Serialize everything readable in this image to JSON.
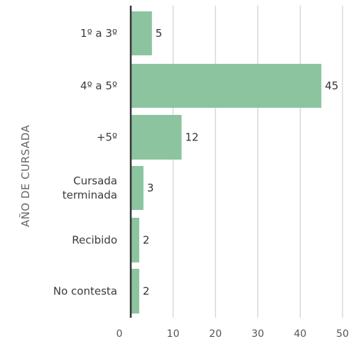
{
  "chart_data": {
    "type": "bar",
    "orientation": "horizontal",
    "categories": [
      [
        "1º a 3º"
      ],
      [
        "4º a 5º"
      ],
      [
        "+5º"
      ],
      [
        "Cursada",
        "terminada"
      ],
      [
        "Recibido"
      ],
      [
        "No contesta"
      ]
    ],
    "values": [
      5,
      45,
      12,
      3,
      2,
      2
    ],
    "ylabel": "AÑO DE CURSADA",
    "xlabel": "",
    "xlim": [
      0,
      50
    ],
    "xticks": [
      "0",
      "10",
      "20",
      "30",
      "40",
      "50"
    ],
    "grid": true,
    "bar_color": "#8cc4a0",
    "axis_color": "#333333",
    "grid_color": "#c8c8c8"
  }
}
